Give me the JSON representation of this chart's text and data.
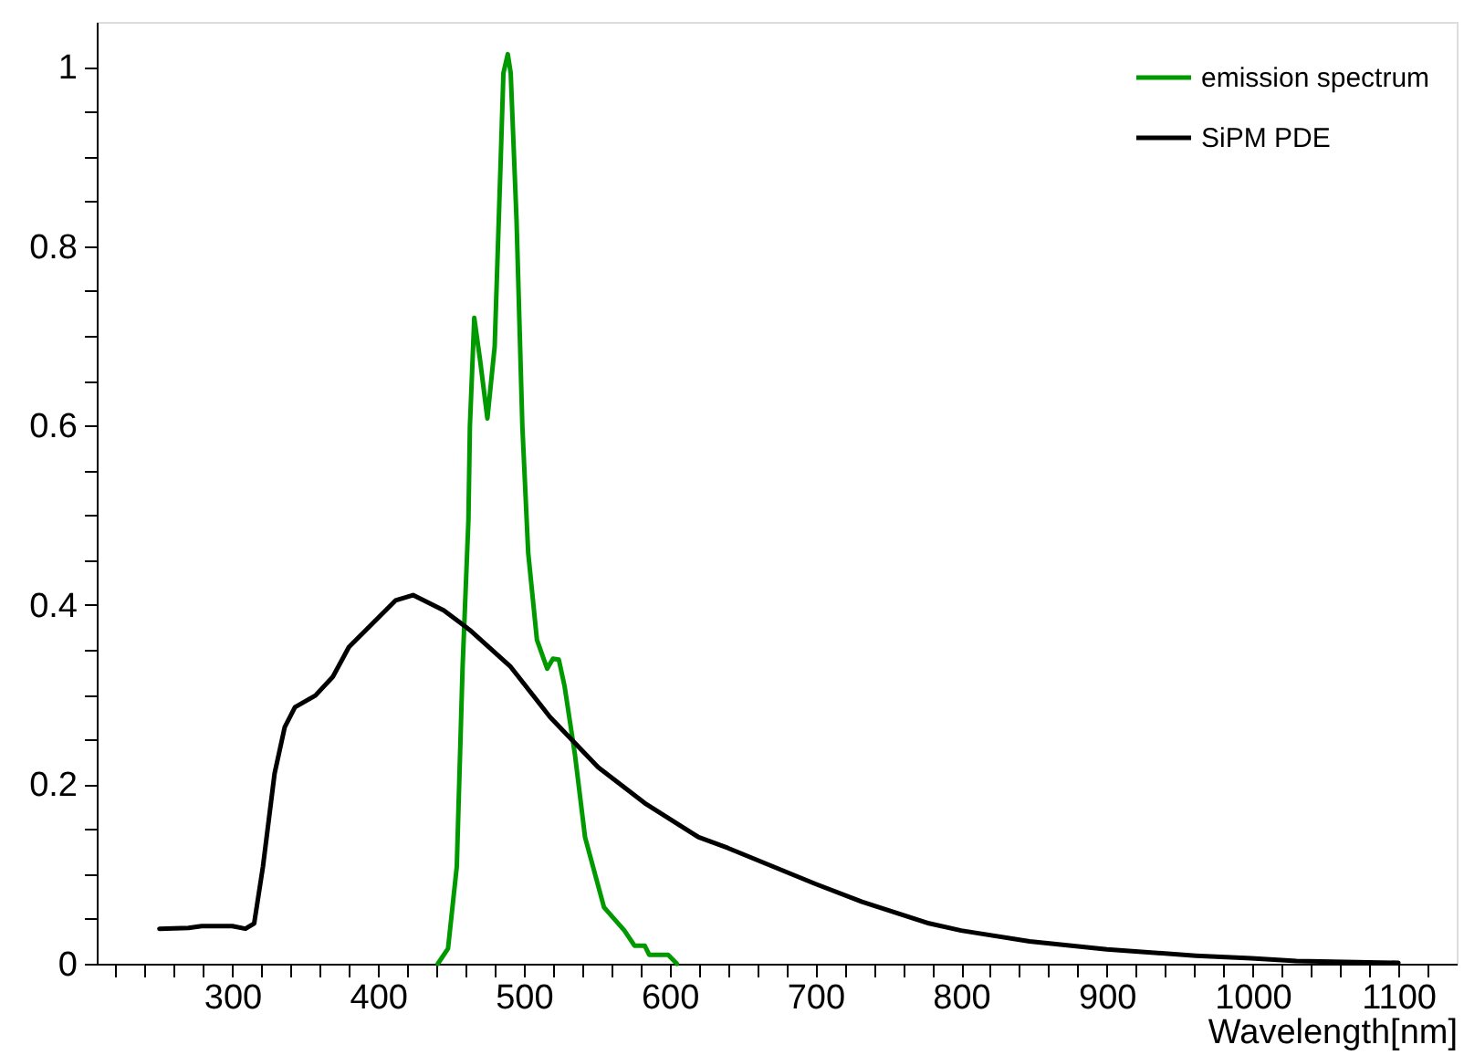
{
  "chart_data": {
    "type": "line",
    "xlabel": "Wavelength[nm]",
    "legend": "top right",
    "grid": false,
    "marker": "none",
    "line_style": "solid",
    "xlim": [
      207,
      1140
    ],
    "xticks": [
      {
        "value": 220,
        "label": null
      },
      {
        "value": 240,
        "label": null
      },
      {
        "value": 260,
        "label": null
      },
      {
        "value": 280,
        "label": null
      },
      300,
      {
        "value": 320,
        "label": null
      },
      {
        "value": 340,
        "label": null
      },
      {
        "value": 360,
        "label": null
      },
      {
        "value": 380,
        "label": null
      },
      400,
      {
        "value": 420,
        "label": null
      },
      {
        "value": 440,
        "label": null
      },
      {
        "value": 460,
        "label": null
      },
      {
        "value": 480,
        "label": null
      },
      500,
      {
        "value": 520,
        "label": null
      },
      {
        "value": 540,
        "label": null
      },
      {
        "value": 560,
        "label": null
      },
      {
        "value": 580,
        "label": null
      },
      600,
      {
        "value": 620,
        "label": null
      },
      {
        "value": 640,
        "label": null
      },
      {
        "value": 660,
        "label": null
      },
      {
        "value": 680,
        "label": null
      },
      700,
      {
        "value": 720,
        "label": null
      },
      {
        "value": 740,
        "label": null
      },
      {
        "value": 760,
        "label": null
      },
      {
        "value": 780,
        "label": null
      },
      800,
      {
        "value": 820,
        "label": null
      },
      {
        "value": 840,
        "label": null
      },
      {
        "value": 860,
        "label": null
      },
      {
        "value": 880,
        "label": null
      },
      900,
      {
        "value": 920,
        "label": null
      },
      {
        "value": 940,
        "label": null
      },
      {
        "value": 960,
        "label": null
      },
      {
        "value": 980,
        "label": null
      },
      1000,
      {
        "value": 1020,
        "label": null
      },
      {
        "value": 1040,
        "label": null
      },
      {
        "value": 1060,
        "label": null
      },
      {
        "value": 1080,
        "label": null
      },
      1100,
      {
        "value": 1120,
        "label": null
      }
    ],
    "ylim": [
      0,
      1.05
    ],
    "yticks": [
      0,
      {
        "value": 0.05,
        "label": null
      },
      {
        "value": 0.1,
        "label": null
      },
      {
        "value": 0.15,
        "label": null
      },
      0.2,
      {
        "value": 0.25,
        "label": null
      },
      {
        "value": 0.3,
        "label": null
      },
      {
        "value": 0.35,
        "label": null
      },
      0.4,
      {
        "value": 0.45,
        "label": null
      },
      {
        "value": 0.5,
        "label": null
      },
      {
        "value": 0.55,
        "label": null
      },
      0.6,
      {
        "value": 0.65,
        "label": null
      },
      {
        "value": 0.7,
        "label": null
      },
      {
        "value": 0.75,
        "label": null
      },
      0.8,
      {
        "value": 0.85,
        "label": null
      },
      {
        "value": 0.9,
        "label": null
      },
      {
        "value": 0.95,
        "label": null
      },
      1
    ],
    "series": [
      {
        "name": "emission spectrum",
        "color": "#009900",
        "x": [
          441,
          448,
          454,
          458,
          462,
          463,
          466,
          470,
          475,
          480,
          484,
          486,
          489,
          491,
          495,
          499,
          503,
          509,
          516,
          520,
          524,
          528,
          535,
          542,
          555,
          569,
          576,
          583,
          586,
          599,
          605
        ],
        "values": [
          0,
          0.017,
          0.108,
          0.331,
          0.495,
          0.599,
          0.72,
          0.673,
          0.608,
          0.688,
          0.889,
          0.993,
          1.014,
          0.993,
          0.829,
          0.599,
          0.458,
          0.361,
          0.329,
          0.34,
          0.339,
          0.309,
          0.234,
          0.141,
          0.063,
          0.037,
          0.02,
          0.02,
          0.01,
          0.01,
          0
        ]
      },
      {
        "name": "SiPM PDE",
        "color": "#000000",
        "x": [
          250,
          270,
          279,
          300,
          309,
          315,
          321,
          329,
          336,
          343,
          357,
          369,
          380,
          396,
          412,
          424,
          445,
          463,
          491,
          518,
          551,
          583,
          620,
          640,
          700,
          732,
          778,
          800,
          847,
          900,
          961,
          999,
          1030,
          1100
        ],
        "values": [
          0.039,
          0.04,
          0.042,
          0.042,
          0.039,
          0.045,
          0.108,
          0.212,
          0.264,
          0.286,
          0.299,
          0.32,
          0.353,
          0.379,
          0.405,
          0.411,
          0.394,
          0.372,
          0.331,
          0.275,
          0.219,
          0.179,
          0.141,
          0.129,
          0.089,
          0.069,
          0.045,
          0.037,
          0.025,
          0.016,
          0.009,
          0.006,
          0.003,
          0.001
        ]
      }
    ]
  }
}
